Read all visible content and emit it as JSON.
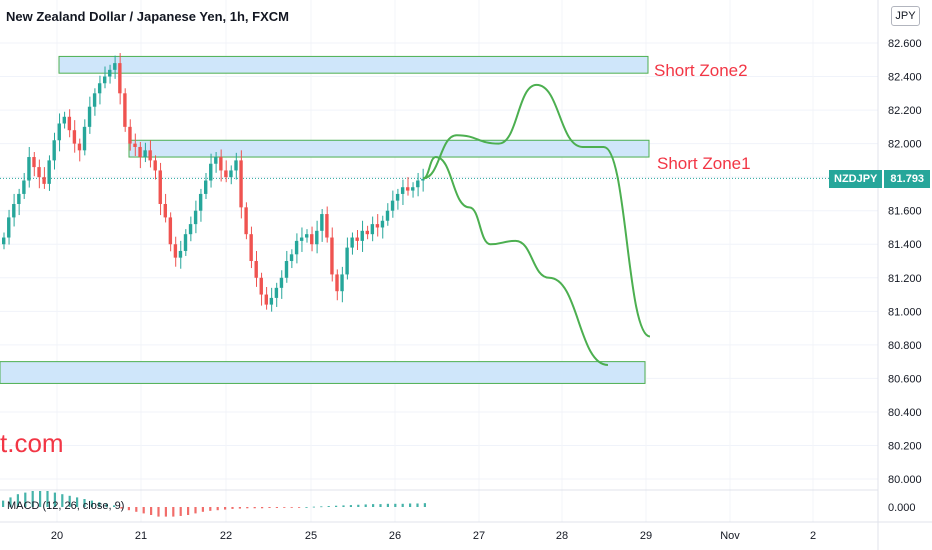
{
  "header": {
    "title": "New Zealand Dollar / Japanese Yen, 1h, FXCM",
    "currency_button": "JPY"
  },
  "watermark": "t.com",
  "zones": [
    {
      "label": "Short Zone2"
    },
    {
      "label": "Short Zone1"
    },
    {
      "label": ""
    }
  ],
  "price_tag": {
    "symbol": "NZDJPY",
    "value": "81.793"
  },
  "macd": {
    "label": "MACD (12, 26, close, 9)",
    "tick": "0.000"
  },
  "chart_data": {
    "type": "candlestick",
    "title": "New Zealand Dollar / Japanese Yen, 1h, FXCM",
    "y_ticks": [
      "82.600",
      "82.400",
      "82.200",
      "82.000",
      "81.800",
      "81.600",
      "81.400",
      "81.200",
      "81.000",
      "80.800",
      "80.600",
      "80.400",
      "80.200",
      "80.000"
    ],
    "x_ticks": [
      "20",
      "21",
      "22",
      "25",
      "26",
      "27",
      "28",
      "29",
      "Nov",
      "2"
    ],
    "current_price": 81.793,
    "colors": {
      "up": "#26a69a",
      "down": "#ef5350",
      "zone_fill": "#cfe6fa",
      "zone_border": "#4caf50",
      "projection": "#4caf50",
      "text_accent": "#f23645"
    },
    "zones": [
      {
        "name": "Short Zone2",
        "y_range": [
          82.42,
          82.52
        ]
      },
      {
        "name": "Short Zone1",
        "y_range": [
          81.92,
          82.02
        ]
      },
      {
        "name": "",
        "y_range": [
          80.57,
          80.7
        ]
      }
    ],
    "closes": [
      81.44,
      81.56,
      81.64,
      81.7,
      81.78,
      81.92,
      81.86,
      81.8,
      81.76,
      81.9,
      82.02,
      82.12,
      82.16,
      82.08,
      82.0,
      81.96,
      82.1,
      82.22,
      82.3,
      82.36,
      82.4,
      82.44,
      82.48,
      82.3,
      82.1,
      82.0,
      81.98,
      81.92,
      81.96,
      81.9,
      81.84,
      81.64,
      81.56,
      81.4,
      81.32,
      81.36,
      81.46,
      81.52,
      81.6,
      81.7,
      81.78,
      81.88,
      81.92,
      81.84,
      81.8,
      81.84,
      81.9,
      81.62,
      81.46,
      81.3,
      81.2,
      81.1,
      81.04,
      81.08,
      81.14,
      81.2,
      81.3,
      81.34,
      81.42,
      81.44,
      81.46,
      81.4,
      81.48,
      81.58,
      81.44,
      81.22,
      81.12,
      81.22,
      81.38,
      81.44,
      81.42,
      81.48,
      81.46,
      81.52,
      81.5,
      81.54,
      81.6,
      81.66,
      81.7,
      81.74,
      81.72,
      81.74,
      81.78,
      81.79
    ],
    "projections": [
      {
        "path": [
          [
            81.793,
            0
          ],
          [
            82.05,
            8
          ],
          [
            82.0,
            18
          ],
          [
            82.35,
            27
          ],
          [
            81.98,
            38
          ],
          [
            81.98,
            43
          ],
          [
            80.85,
            54
          ]
        ]
      },
      {
        "path": [
          [
            81.793,
            0
          ],
          [
            81.92,
            3
          ],
          [
            81.62,
            11
          ],
          [
            81.4,
            16
          ],
          [
            81.42,
            22
          ],
          [
            81.2,
            30
          ],
          [
            80.68,
            44
          ]
        ]
      }
    ],
    "macd": [
      0.02,
      0.03,
      0.04,
      0.045,
      0.05,
      0.05,
      0.05,
      0.045,
      0.04,
      0.035,
      0.03,
      0.025,
      0.02,
      0.015,
      0.01,
      0.005,
      -0.005,
      -0.01,
      -0.015,
      -0.02,
      -0.025,
      -0.03,
      -0.03,
      -0.03,
      -0.028,
      -0.025,
      -0.02,
      -0.015,
      -0.012,
      -0.01,
      -0.008,
      -0.006,
      -0.005,
      -0.004,
      -0.004,
      -0.004,
      -0.003,
      -0.003,
      -0.002,
      -0.002,
      -0.001,
      0.0,
      0.001,
      0.002,
      0.003,
      0.004,
      0.005,
      0.006,
      0.007,
      0.008,
      0.009,
      0.009,
      0.01,
      0.01,
      0.01,
      0.011,
      0.011,
      0.012
    ]
  }
}
